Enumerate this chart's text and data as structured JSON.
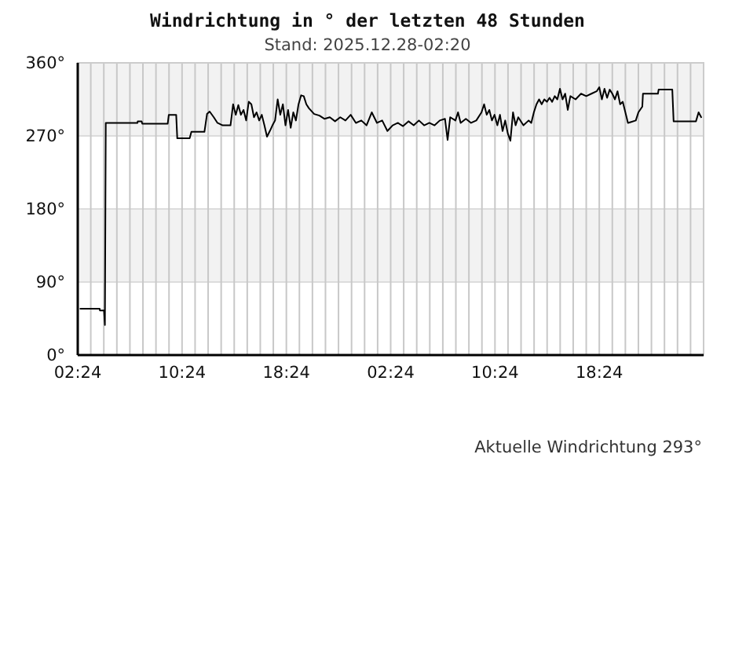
{
  "chart_data": {
    "type": "line",
    "title": "Windrichtung in ° der letzten 48 Stunden",
    "subtitle": "Stand: 2025.12.28-02:20",
    "color": "#000000",
    "x": [
      "2025-12-26T02:36",
      "2025-12-26T04:05",
      "2025-12-26T04:06",
      "2025-12-26T04:25",
      "2025-12-26T04:29",
      "2025-12-26T04:33",
      "2025-12-26T06:59",
      "2025-12-26T07:00",
      "2025-12-26T07:18",
      "2025-12-26T07:21",
      "2025-12-26T09:18",
      "2025-12-26T09:23",
      "2025-12-26T09:57",
      "2025-12-26T10:02",
      "2025-12-26T10:59",
      "2025-12-26T11:07",
      "2025-12-26T12:07",
      "2025-12-26T12:19",
      "2025-12-26T12:31",
      "2025-12-26T12:50",
      "2025-12-26T13:07",
      "2025-12-26T13:31",
      "2025-12-26T14:07",
      "2025-12-26T14:19",
      "2025-12-26T14:31",
      "2025-12-26T14:43",
      "2025-12-26T14:55",
      "2025-12-26T15:07",
      "2025-12-26T15:19",
      "2025-12-26T15:31",
      "2025-12-26T15:43",
      "2025-12-26T15:55",
      "2025-12-26T16:07",
      "2025-12-26T16:19",
      "2025-12-26T16:31",
      "2025-12-26T16:43",
      "2025-12-26T16:55",
      "2025-12-26T17:08",
      "2025-12-26T17:20",
      "2025-12-26T17:32",
      "2025-12-26T17:44",
      "2025-12-26T17:56",
      "2025-12-26T18:08",
      "2025-12-26T18:20",
      "2025-12-26T18:32",
      "2025-12-26T18:44",
      "2025-12-26T18:56",
      "2025-12-26T19:08",
      "2025-12-26T19:20",
      "2025-12-26T19:32",
      "2025-12-26T19:44",
      "2025-12-26T19:56",
      "2025-12-26T20:08",
      "2025-12-26T20:32",
      "2025-12-26T20:56",
      "2025-12-26T21:20",
      "2025-12-26T21:44",
      "2025-12-26T22:08",
      "2025-12-26T22:32",
      "2025-12-26T22:56",
      "2025-12-26T23:20",
      "2025-12-26T23:44",
      "2025-12-27T00:09",
      "2025-12-27T00:33",
      "2025-12-27T00:57",
      "2025-12-27T01:21",
      "2025-12-27T01:45",
      "2025-12-27T02:09",
      "2025-12-27T02:33",
      "2025-12-27T02:57",
      "2025-12-27T03:21",
      "2025-12-27T03:46",
      "2025-12-27T04:10",
      "2025-12-27T04:34",
      "2025-12-27T04:58",
      "2025-12-27T05:22",
      "2025-12-27T05:46",
      "2025-12-27T06:10",
      "2025-12-27T06:34",
      "2025-12-27T06:46",
      "2025-12-27T06:58",
      "2025-12-27T07:22",
      "2025-12-27T07:34",
      "2025-12-27T07:46",
      "2025-12-27T08:10",
      "2025-12-27T08:34",
      "2025-12-27T08:58",
      "2025-12-27T09:22",
      "2025-12-27T09:34",
      "2025-12-27T09:46",
      "2025-12-27T09:58",
      "2025-12-27T10:10",
      "2025-12-27T10:22",
      "2025-12-27T10:35",
      "2025-12-27T10:47",
      "2025-12-27T10:59",
      "2025-12-27T11:11",
      "2025-12-27T11:23",
      "2025-12-27T11:35",
      "2025-12-27T11:47",
      "2025-12-27T11:59",
      "2025-12-27T12:11",
      "2025-12-27T12:35",
      "2025-12-27T12:59",
      "2025-12-27T13:11",
      "2025-12-27T13:23",
      "2025-12-27T13:35",
      "2025-12-27T13:47",
      "2025-12-27T13:59",
      "2025-12-27T14:11",
      "2025-12-27T14:23",
      "2025-12-27T14:35",
      "2025-12-27T14:47",
      "2025-12-27T14:59",
      "2025-12-27T15:11",
      "2025-12-27T15:23",
      "2025-12-27T15:35",
      "2025-12-27T15:47",
      "2025-12-27T15:59",
      "2025-12-27T16:11",
      "2025-12-27T16:35",
      "2025-12-27T17:00",
      "2025-12-27T17:24",
      "2025-12-27T17:48",
      "2025-12-27T18:12",
      "2025-12-27T18:24",
      "2025-12-27T18:36",
      "2025-12-27T18:48",
      "2025-12-27T19:00",
      "2025-12-27T19:12",
      "2025-12-27T19:24",
      "2025-12-27T19:36",
      "2025-12-27T19:48",
      "2025-12-27T20:00",
      "2025-12-27T20:12",
      "2025-12-27T20:24",
      "2025-12-27T20:36",
      "2025-12-27T20:48",
      "2025-12-27T21:12",
      "2025-12-27T21:24",
      "2025-12-27T21:42",
      "2025-12-27T21:45",
      "2025-12-27T22:54",
      "2025-12-27T22:57",
      "2025-12-28T00:00",
      "2025-12-28T00:06",
      "2025-12-28T01:49",
      "2025-12-28T02:01",
      "2025-12-28T02:13"
    ],
    "values": [
      57,
      57,
      55,
      55,
      37,
      286,
      286,
      288,
      288,
      285,
      285,
      296,
      296,
      267,
      267,
      275,
      275,
      297,
      300,
      293,
      286,
      283,
      283,
      309,
      296,
      308,
      296,
      302,
      289,
      312,
      309,
      293,
      299,
      289,
      296,
      283,
      269,
      276,
      283,
      289,
      315,
      296,
      309,
      283,
      302,
      280,
      299,
      289,
      309,
      320,
      319,
      309,
      304,
      297,
      295,
      291,
      293,
      288,
      293,
      289,
      296,
      286,
      289,
      283,
      299,
      286,
      289,
      276,
      283,
      286,
      282,
      288,
      283,
      289,
      283,
      286,
      283,
      289,
      291,
      265,
      293,
      289,
      299,
      286,
      291,
      286,
      289,
      299,
      309,
      296,
      302,
      289,
      296,
      283,
      296,
      276,
      289,
      273,
      264,
      299,
      283,
      293,
      283,
      289,
      286,
      299,
      309,
      315,
      309,
      315,
      312,
      317,
      312,
      319,
      315,
      328,
      315,
      322,
      302,
      319,
      315,
      322,
      319,
      322,
      325,
      330,
      315,
      328,
      317,
      327,
      322,
      315,
      325,
      309,
      312,
      299,
      286,
      287,
      289,
      299,
      306,
      322,
      322,
      327,
      327,
      288,
      288,
      299,
      293
    ],
    "xlim": [
      "2025-12-26T02:24",
      "2025-12-28T02:24"
    ],
    "xticks": [
      {
        "value": "2025-12-26T02:24",
        "label": "02:24"
      },
      {
        "value": "2025-12-26T03:24",
        "label": null
      },
      {
        "value": "2025-12-26T04:24",
        "label": null
      },
      {
        "value": "2025-12-26T05:24",
        "label": null
      },
      {
        "value": "2025-12-26T06:24",
        "label": null
      },
      {
        "value": "2025-12-26T07:24",
        "label": null
      },
      {
        "value": "2025-12-26T08:24",
        "label": null
      },
      {
        "value": "2025-12-26T09:24",
        "label": null
      },
      {
        "value": "2025-12-26T10:24",
        "label": "10:24"
      },
      {
        "value": "2025-12-26T11:24",
        "label": null
      },
      {
        "value": "2025-12-26T12:24",
        "label": null
      },
      {
        "value": "2025-12-26T13:24",
        "label": null
      },
      {
        "value": "2025-12-26T14:24",
        "label": null
      },
      {
        "value": "2025-12-26T15:24",
        "label": null
      },
      {
        "value": "2025-12-26T16:24",
        "label": null
      },
      {
        "value": "2025-12-26T17:24",
        "label": null
      },
      {
        "value": "2025-12-26T18:24",
        "label": "18:24"
      },
      {
        "value": "2025-12-26T19:24",
        "label": null
      },
      {
        "value": "2025-12-26T20:24",
        "label": null
      },
      {
        "value": "2025-12-26T21:24",
        "label": null
      },
      {
        "value": "2025-12-26T22:24",
        "label": null
      },
      {
        "value": "2025-12-26T23:24",
        "label": null
      },
      {
        "value": "2025-12-27T00:24",
        "label": null
      },
      {
        "value": "2025-12-27T01:24",
        "label": null
      },
      {
        "value": "2025-12-27T02:24",
        "label": "02:24"
      },
      {
        "value": "2025-12-27T03:24",
        "label": null
      },
      {
        "value": "2025-12-27T04:24",
        "label": null
      },
      {
        "value": "2025-12-27T05:24",
        "label": null
      },
      {
        "value": "2025-12-27T06:24",
        "label": null
      },
      {
        "value": "2025-12-27T07:24",
        "label": null
      },
      {
        "value": "2025-12-27T08:24",
        "label": null
      },
      {
        "value": "2025-12-27T09:24",
        "label": null
      },
      {
        "value": "2025-12-27T10:24",
        "label": "10:24"
      },
      {
        "value": "2025-12-27T11:24",
        "label": null
      },
      {
        "value": "2025-12-27T12:24",
        "label": null
      },
      {
        "value": "2025-12-27T13:24",
        "label": null
      },
      {
        "value": "2025-12-27T14:24",
        "label": null
      },
      {
        "value": "2025-12-27T15:24",
        "label": null
      },
      {
        "value": "2025-12-27T16:24",
        "label": null
      },
      {
        "value": "2025-12-27T17:24",
        "label": null
      },
      {
        "value": "2025-12-27T18:24",
        "label": "18:24"
      },
      {
        "value": "2025-12-27T19:24",
        "label": null
      },
      {
        "value": "2025-12-27T20:24",
        "label": null
      },
      {
        "value": "2025-12-27T21:24",
        "label": null
      },
      {
        "value": "2025-12-27T22:24",
        "label": null
      },
      {
        "value": "2025-12-27T23:24",
        "label": null
      },
      {
        "value": "2025-12-28T00:24",
        "label": null
      },
      {
        "value": "2025-12-28T01:24",
        "label": null
      },
      {
        "value": "2025-12-28T02:24",
        "label": null
      }
    ],
    "ylim": [
      0,
      360
    ],
    "yticks": [
      {
        "value": 0,
        "label": "0°"
      },
      {
        "value": 90,
        "label": "90°"
      },
      {
        "value": 180,
        "label": "180°"
      },
      {
        "value": 270,
        "label": "270°"
      },
      {
        "value": 360,
        "label": "360°"
      }
    ],
    "bands": [
      {
        "axis": "y",
        "from": 90,
        "to": 180,
        "color": "#f2f2f2"
      },
      {
        "axis": "y",
        "from": 270,
        "to": 360,
        "color": "#f2f2f2"
      }
    ],
    "grid": true,
    "line_style": "solid",
    "annotations": [
      "Aktuelle Windrichtung 293°"
    ]
  }
}
